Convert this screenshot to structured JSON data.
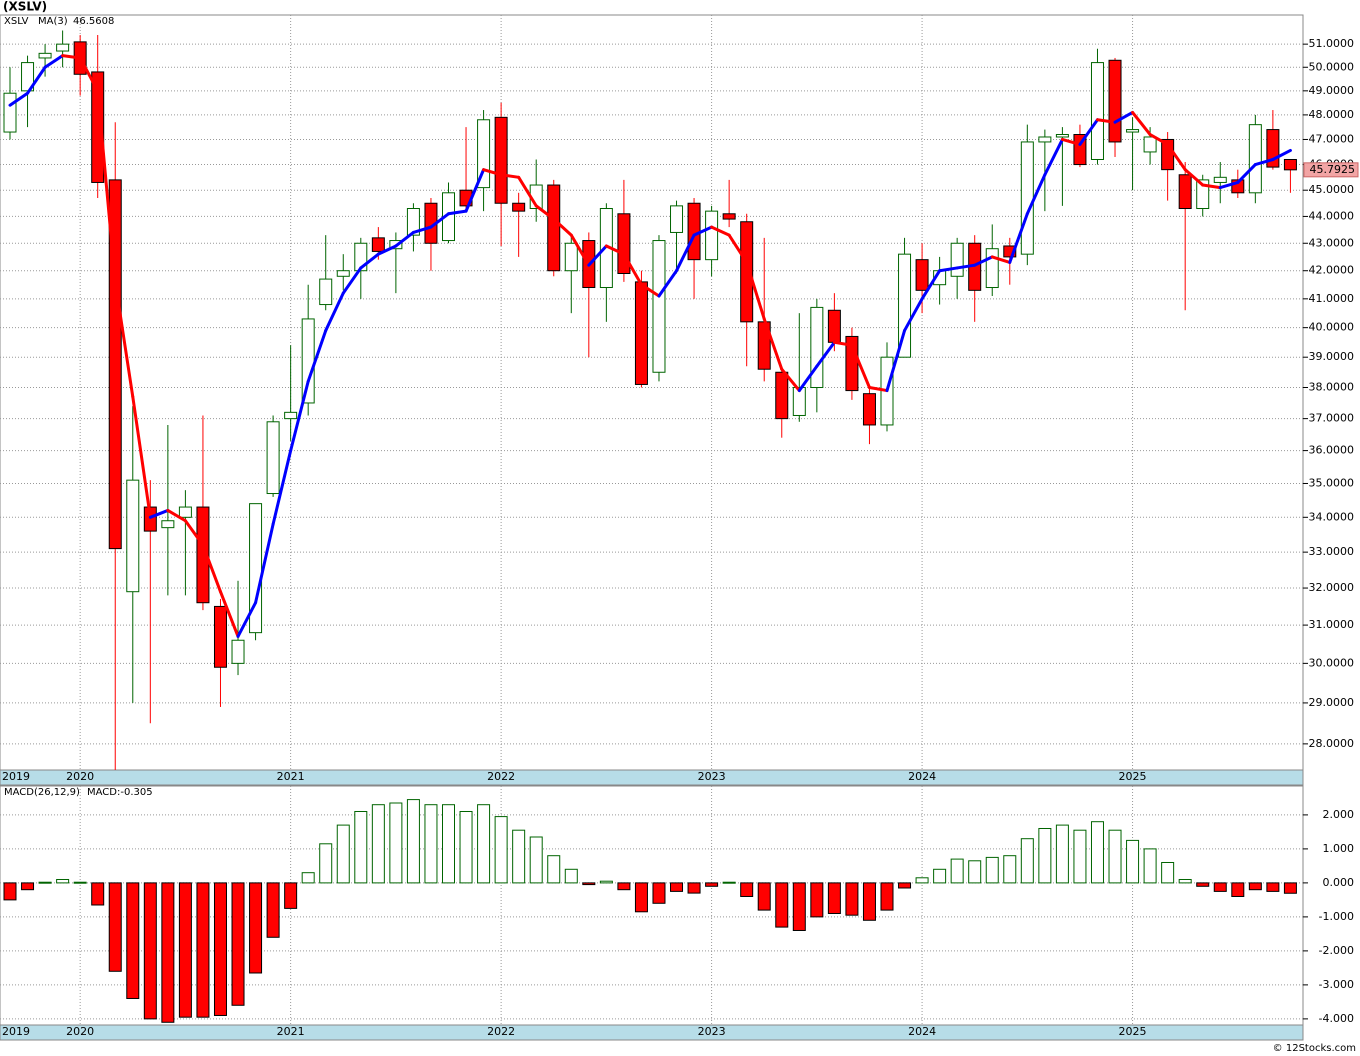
{
  "title": "(XSLV)",
  "footer": "© 12Stocks.com",
  "chart_data": [
    {
      "type": "candlestick",
      "ticker": "XSLV",
      "categories": [
        "2019",
        null,
        null,
        null,
        "2020",
        null,
        null,
        null,
        null,
        null,
        null,
        null,
        null,
        null,
        null,
        null,
        "2021",
        null,
        null,
        null,
        null,
        null,
        null,
        null,
        null,
        null,
        null,
        null,
        "2022",
        null,
        null,
        null,
        null,
        null,
        null,
        null,
        null,
        null,
        null,
        null,
        "2023",
        null,
        null,
        null,
        null,
        null,
        null,
        null,
        null,
        null,
        null,
        null,
        "2024",
        null,
        null,
        null,
        null,
        null,
        null,
        null,
        null,
        null,
        null,
        null,
        "2025",
        null,
        null,
        null,
        null,
        null,
        null,
        null,
        null,
        null
      ],
      "open": [
        47.3,
        49.0,
        50.4,
        50.7,
        51.1,
        49.8,
        45.4,
        31.9,
        34.3,
        33.7,
        34.0,
        34.3,
        31.5,
        30.0,
        30.8,
        34.7,
        37.0,
        37.5,
        40.8,
        41.8,
        42.0,
        43.2,
        42.8,
        43.3,
        44.5,
        43.1,
        45.0,
        45.1,
        47.9,
        44.5,
        44.3,
        45.2,
        42.0,
        43.1,
        41.4,
        44.1,
        41.6,
        38.5,
        43.4,
        44.5,
        42.4,
        44.1,
        43.8,
        40.2,
        38.5,
        37.1,
        38.0,
        40.6,
        39.7,
        37.8,
        36.8,
        39.0,
        42.4,
        41.5,
        41.8,
        43.0,
        41.4,
        42.9,
        42.6,
        46.9,
        47.1,
        47.2,
        46.2,
        50.3,
        47.3,
        46.5,
        47.0,
        45.6,
        44.3,
        45.3,
        45.4,
        44.9,
        47.4,
        46.2
      ],
      "high": [
        50.0,
        50.5,
        51.0,
        51.6,
        51.4,
        51.4,
        47.7,
        37.4,
        35.1,
        36.8,
        34.8,
        37.1,
        31.7,
        32.2,
        34.4,
        37.1,
        39.4,
        41.5,
        43.3,
        42.6,
        43.2,
        43.6,
        43.4,
        44.5,
        44.7,
        45.3,
        47.5,
        48.2,
        48.5,
        44.9,
        46.2,
        45.4,
        43.3,
        43.4,
        44.5,
        45.4,
        42.0,
        43.3,
        44.6,
        44.7,
        44.4,
        45.4,
        44.1,
        43.2,
        38.6,
        40.5,
        41.0,
        41.2,
        40.0,
        38.0,
        39.5,
        43.2,
        43.0,
        42.5,
        43.2,
        43.3,
        43.7,
        43.2,
        47.6,
        47.4,
        47.5,
        47.6,
        50.8,
        50.4,
        47.9,
        47.5,
        47.3,
        46.1,
        45.6,
        46.1,
        45.8,
        48.0,
        48.2,
        46.2
      ],
      "low": [
        47.0,
        47.5,
        49.6,
        50.0,
        48.8,
        44.7,
        27.3,
        29.0,
        28.5,
        31.8,
        31.8,
        31.4,
        28.9,
        29.7,
        30.6,
        34.6,
        36.3,
        37.1,
        40.6,
        41.3,
        41.0,
        42.4,
        41.2,
        42.7,
        42.0,
        43.0,
        44.2,
        44.2,
        42.9,
        42.5,
        43.8,
        41.8,
        40.5,
        39.0,
        40.2,
        41.6,
        38.0,
        38.2,
        41.9,
        41.0,
        41.8,
        43.6,
        38.7,
        38.2,
        36.4,
        36.9,
        37.2,
        39.2,
        37.6,
        36.2,
        36.6,
        39.0,
        40.5,
        40.8,
        41.0,
        40.2,
        41.1,
        41.5,
        42.2,
        44.2,
        44.4,
        45.9,
        46.0,
        46.3,
        45.0,
        46.0,
        44.6,
        40.6,
        44.0,
        44.5,
        44.7,
        44.5,
        45.8,
        44.9
      ],
      "close": [
        48.9,
        50.2,
        50.6,
        51.0,
        49.7,
        45.3,
        33.1,
        35.1,
        33.6,
        33.9,
        34.3,
        31.6,
        29.9,
        30.6,
        34.4,
        36.9,
        37.2,
        40.3,
        41.7,
        42.0,
        43.0,
        42.7,
        43.1,
        44.3,
        43.0,
        44.9,
        44.4,
        47.8,
        44.5,
        44.2,
        45.2,
        42.0,
        43.0,
        41.4,
        44.3,
        41.9,
        38.1,
        43.1,
        44.4,
        42.4,
        44.2,
        43.9,
        40.2,
        38.6,
        37.0,
        38.0,
        40.7,
        39.5,
        37.9,
        36.8,
        39.0,
        42.6,
        41.3,
        42.0,
        43.0,
        41.3,
        42.8,
        42.5,
        46.9,
        47.1,
        47.2,
        46.0,
        50.2,
        46.9,
        47.4,
        47.1,
        45.8,
        44.3,
        45.4,
        45.5,
        44.9,
        47.6,
        45.9,
        45.7925
      ],
      "up_color": "#006400",
      "down_color": "#ff0000",
      "ma": {
        "name": "MA(3)",
        "up_color": "#0000ff",
        "down_color": "#ff0000",
        "values": [
          48.4,
          48.9,
          50.0,
          50.5,
          50.4,
          49.0,
          41.6,
          37.7,
          34.0,
          34.2,
          33.9,
          33.2,
          31.9,
          30.7,
          31.6,
          33.8,
          36.0,
          38.2,
          39.9,
          41.2,
          42.1,
          42.6,
          42.9,
          43.4,
          43.6,
          44.1,
          44.2,
          45.8,
          45.6,
          45.5,
          44.4,
          43.9,
          43.3,
          42.2,
          42.9,
          42.6,
          41.5,
          41.1,
          42.0,
          43.3,
          43.6,
          43.3,
          42.3,
          40.3,
          38.6,
          37.9,
          38.7,
          39.5,
          39.4,
          38.0,
          37.9,
          39.9,
          41.0,
          42.0,
          42.1,
          42.2,
          42.5,
          42.3,
          44.1,
          45.6,
          47.0,
          46.8,
          47.8,
          47.7,
          48.1,
          47.2,
          46.8,
          45.8,
          45.2,
          45.1,
          45.3,
          46.0,
          46.2,
          46.5608
        ]
      },
      "log_scale": true,
      "grid": true,
      "ylim": [
        27.38,
        52.29
      ],
      "yticks": [
        {
          "value": 28,
          "label": "28.0000"
        },
        {
          "value": 29,
          "label": "29.0000"
        },
        {
          "value": 30,
          "label": "30.0000"
        },
        {
          "value": 31,
          "label": "31.0000"
        },
        {
          "value": 32,
          "label": "32.0000"
        },
        {
          "value": 33,
          "label": "33.0000"
        },
        {
          "value": 34,
          "label": "34.0000"
        },
        {
          "value": 35,
          "label": "35.0000"
        },
        {
          "value": 36,
          "label": "36.0000"
        },
        {
          "value": 37,
          "label": "37.0000"
        },
        {
          "value": 38,
          "label": "38.0000"
        },
        {
          "value": 39,
          "label": "39.0000"
        },
        {
          "value": 40,
          "label": "40.0000"
        },
        {
          "value": 41,
          "label": "41.0000"
        },
        {
          "value": 42,
          "label": "42.0000"
        },
        {
          "value": 43,
          "label": "43.0000"
        },
        {
          "value": 44,
          "label": "44.0000"
        },
        {
          "value": 45,
          "label": "45.0000"
        },
        {
          "value": 46,
          "label": "46.0000"
        },
        {
          "value": 47,
          "label": "47.0000"
        },
        {
          "value": 48,
          "label": "48.0000"
        },
        {
          "value": 49,
          "label": "49.0000"
        },
        {
          "value": 50,
          "label": "50.0000"
        },
        {
          "value": 51,
          "label": "51.0000"
        }
      ]
    },
    {
      "type": "bar",
      "name": "MACD(26,12,9)",
      "current_label": "MACD:-0.305",
      "categories": [
        "2019",
        null,
        null,
        null,
        "2020",
        null,
        null,
        null,
        null,
        null,
        null,
        null,
        null,
        null,
        null,
        null,
        "2021",
        null,
        null,
        null,
        null,
        null,
        null,
        null,
        null,
        null,
        null,
        null,
        "2022",
        null,
        null,
        null,
        null,
        null,
        null,
        null,
        null,
        null,
        null,
        null,
        "2023",
        null,
        null,
        null,
        null,
        null,
        null,
        null,
        null,
        null,
        null,
        null,
        "2024",
        null,
        null,
        null,
        null,
        null,
        null,
        null,
        null,
        null,
        null,
        null,
        "2025",
        null,
        null,
        null,
        null,
        null,
        null,
        null,
        null,
        null
      ],
      "values": [
        -0.5,
        -0.2,
        0.02,
        0.1,
        0.02,
        -0.65,
        -2.6,
        -3.4,
        -4.0,
        -4.1,
        -3.95,
        -3.95,
        -3.9,
        -3.6,
        -2.65,
        -1.6,
        -0.75,
        0.3,
        1.15,
        1.7,
        2.1,
        2.3,
        2.35,
        2.45,
        2.3,
        2.3,
        2.1,
        2.3,
        1.95,
        1.55,
        1.35,
        0.8,
        0.4,
        -0.05,
        0.05,
        -0.2,
        -0.85,
        -0.6,
        -0.25,
        -0.3,
        -0.1,
        0.02,
        -0.4,
        -0.8,
        -1.3,
        -1.4,
        -1.0,
        -0.9,
        -0.95,
        -1.1,
        -0.8,
        -0.15,
        0.15,
        0.4,
        0.7,
        0.65,
        0.75,
        0.8,
        1.3,
        1.6,
        1.7,
        1.55,
        1.8,
        1.55,
        1.25,
        1.0,
        0.6,
        0.1,
        -0.1,
        -0.25,
        -0.4,
        -0.2,
        -0.25,
        -0.305
      ],
      "up_color": "#006400",
      "down_color": "#ff0000",
      "grid": true,
      "ylim": [
        -4.18,
        2.85
      ],
      "yticks": [
        {
          "value": 2,
          "label": "2.000"
        },
        {
          "value": 1,
          "label": "1.000"
        },
        {
          "value": 0,
          "label": "0.000"
        },
        {
          "value": -1,
          "label": "-1.000"
        },
        {
          "value": -2,
          "label": "-2.000"
        },
        {
          "value": -3,
          "label": "-3.000"
        },
        {
          "value": -4,
          "label": "-4.000"
        }
      ]
    }
  ]
}
